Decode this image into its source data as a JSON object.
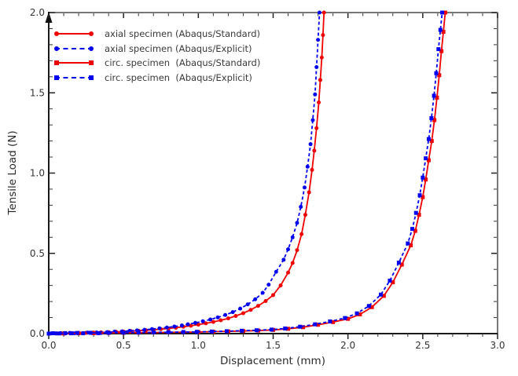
{
  "chart_data": {
    "type": "line",
    "title": "",
    "xlabel": "Displacement (mm)",
    "ylabel": "Tensile Load (N)",
    "xlim": [
      0,
      3
    ],
    "ylim": [
      0,
      2
    ],
    "x_major_ticks": [
      0,
      0.5,
      1,
      1.5,
      2,
      2.5,
      3
    ],
    "x_tick_labels": [
      "0.0",
      "0.5",
      "1.0",
      "1.5",
      "2.0",
      "2.5",
      "3.0"
    ],
    "y_major_ticks": [
      0,
      0.5,
      1,
      1.5,
      2
    ],
    "y_tick_labels": [
      "0.0",
      "0.5",
      "1.0",
      "1.5",
      "2.0"
    ],
    "minor_tick_step": 0.1,
    "grid": false,
    "legend_position": "upper-left",
    "colors": {
      "standard_red": "#f00000",
      "explicit_blue": "#0000f0",
      "axis": "#1a1a1a",
      "frame": "#4a4a4a",
      "tick_text": "#333333"
    },
    "series": [
      {
        "name": "axial-standard",
        "label": "axial specimen (Abaqus/Standard)",
        "color": "#f00000",
        "line_style": "solid",
        "marker": "circle",
        "x": [
          0.0,
          0.05,
          0.1,
          0.15,
          0.2,
          0.25,
          0.3,
          0.35,
          0.4,
          0.45,
          0.5,
          0.55,
          0.6,
          0.65,
          0.7,
          0.75,
          0.8,
          0.85,
          0.9,
          0.95,
          1.0,
          1.05,
          1.1,
          1.15,
          1.2,
          1.25,
          1.3,
          1.35,
          1.4,
          1.45,
          1.5,
          1.55,
          1.6,
          1.63,
          1.66,
          1.69,
          1.715,
          1.74,
          1.76,
          1.775,
          1.79,
          1.805,
          1.815,
          1.825,
          1.833,
          1.84
        ],
        "y": [
          0.0,
          0.001,
          0.002,
          0.003,
          0.004,
          0.005,
          0.006,
          0.008,
          0.009,
          0.011,
          0.013,
          0.015,
          0.018,
          0.021,
          0.024,
          0.028,
          0.032,
          0.037,
          0.043,
          0.049,
          0.056,
          0.064,
          0.073,
          0.083,
          0.095,
          0.11,
          0.127,
          0.148,
          0.173,
          0.203,
          0.24,
          0.3,
          0.38,
          0.44,
          0.52,
          0.62,
          0.74,
          0.88,
          1.02,
          1.14,
          1.28,
          1.44,
          1.58,
          1.72,
          1.86,
          2.0
        ]
      },
      {
        "name": "axial-explicit",
        "label": "axial specimen (Abaqus/Explicit)",
        "color": "#0000f0",
        "line_style": "dashed",
        "marker": "circle",
        "x": [
          0.0,
          0.02,
          0.05,
          0.08,
          0.11,
          0.14,
          0.17,
          0.2,
          0.23,
          0.26,
          0.29,
          0.32,
          0.35,
          0.39,
          0.44,
          0.49,
          0.54,
          0.59,
          0.64,
          0.69,
          0.74,
          0.79,
          0.84,
          0.89,
          0.93,
          0.98,
          1.03,
          1.08,
          1.13,
          1.18,
          1.23,
          1.28,
          1.33,
          1.38,
          1.43,
          1.47,
          1.52,
          1.57,
          1.6,
          1.63,
          1.66,
          1.685,
          1.71,
          1.73,
          1.75,
          1.765,
          1.78,
          1.79,
          1.8,
          1.81
        ],
        "y": [
          0.0,
          0.002,
          0.001,
          0.003,
          0.001,
          0.004,
          0.002,
          0.005,
          0.002,
          0.006,
          0.003,
          0.007,
          0.004,
          0.009,
          0.012,
          0.014,
          0.017,
          0.02,
          0.024,
          0.028,
          0.033,
          0.038,
          0.044,
          0.051,
          0.058,
          0.067,
          0.077,
          0.088,
          0.101,
          0.116,
          0.134,
          0.156,
          0.182,
          0.214,
          0.254,
          0.305,
          0.385,
          0.46,
          0.525,
          0.6,
          0.69,
          0.79,
          0.91,
          1.04,
          1.18,
          1.33,
          1.49,
          1.66,
          1.83,
          2.0
        ]
      },
      {
        "name": "circ-standard",
        "label": "circ. specimen  (Abaqus/Standard)",
        "color": "#f00000",
        "line_style": "solid",
        "marker": "square",
        "x": [
          0.0,
          0.1,
          0.2,
          0.3,
          0.4,
          0.5,
          0.6,
          0.7,
          0.8,
          0.9,
          1.0,
          1.1,
          1.2,
          1.3,
          1.4,
          1.5,
          1.6,
          1.7,
          1.8,
          1.9,
          2.0,
          2.08,
          2.16,
          2.24,
          2.3,
          2.36,
          2.42,
          2.45,
          2.475,
          2.5,
          2.52,
          2.54,
          2.56,
          2.578,
          2.595,
          2.61,
          2.625,
          2.638,
          2.65
        ],
        "y": [
          0.0,
          0.001,
          0.002,
          0.003,
          0.004,
          0.005,
          0.006,
          0.007,
          0.008,
          0.009,
          0.01,
          0.012,
          0.014,
          0.016,
          0.019,
          0.023,
          0.03,
          0.04,
          0.055,
          0.072,
          0.092,
          0.12,
          0.165,
          0.235,
          0.32,
          0.43,
          0.55,
          0.64,
          0.74,
          0.85,
          0.96,
          1.08,
          1.2,
          1.33,
          1.47,
          1.61,
          1.76,
          1.88,
          2.0
        ]
      },
      {
        "name": "circ-explicit",
        "label": "circ. specimen  (Abaqus/Explicit)",
        "color": "#0000f0",
        "line_style": "dashed",
        "marker": "square",
        "x": [
          0.0,
          0.03,
          0.07,
          0.11,
          0.15,
          0.19,
          0.23,
          0.28,
          0.33,
          0.4,
          0.5,
          0.6,
          0.7,
          0.8,
          0.9,
          0.99,
          1.09,
          1.19,
          1.29,
          1.39,
          1.49,
          1.58,
          1.68,
          1.78,
          1.88,
          1.98,
          2.06,
          2.14,
          2.22,
          2.28,
          2.34,
          2.4,
          2.43,
          2.455,
          2.48,
          2.5,
          2.52,
          2.54,
          2.558,
          2.575,
          2.59,
          2.605,
          2.618,
          2.63
        ],
        "y": [
          0.0,
          0.002,
          0.001,
          0.003,
          0.002,
          0.004,
          0.002,
          0.005,
          0.003,
          0.005,
          0.006,
          0.007,
          0.008,
          0.009,
          0.01,
          0.011,
          0.013,
          0.015,
          0.018,
          0.021,
          0.025,
          0.032,
          0.043,
          0.058,
          0.076,
          0.097,
          0.126,
          0.172,
          0.243,
          0.33,
          0.442,
          0.562,
          0.652,
          0.752,
          0.862,
          0.972,
          1.092,
          1.212,
          1.342,
          1.482,
          1.622,
          1.772,
          1.892,
          2.0
        ]
      }
    ]
  }
}
